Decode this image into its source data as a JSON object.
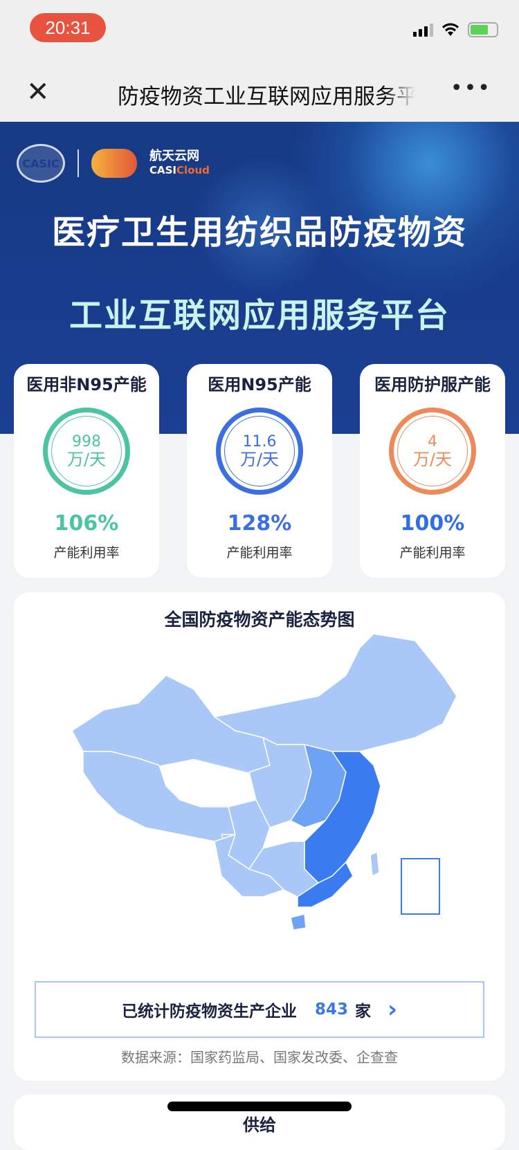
{
  "status_bar": {
    "time": "20:31",
    "signal_icon": "signal-icon",
    "wifi_icon": "wifi-icon",
    "battery_icon": "battery-charging-icon"
  },
  "nav": {
    "title": "防疫物资工业互联网应用服务平台",
    "close_icon": "close-icon",
    "more_icon": "more-icon"
  },
  "banner": {
    "logo_text_cn": "航天云网",
    "logo_text_en_1": "CASI",
    "logo_text_en_2": "Cloud",
    "title_line1": "医疗卫生用纺织品防疫物资",
    "title_line2": "工业互联网应用服务平台"
  },
  "capacity_cards": [
    {
      "title": "医用非N95产能",
      "value": "998",
      "unit": "万/天",
      "rate": "106%",
      "rate_label": "产能利用率",
      "color": "#4cc4a4"
    },
    {
      "title": "医用N95产能",
      "value": "11.6",
      "unit": "万/天",
      "rate": "128%",
      "rate_label": "产能利用率",
      "color": "#3b6fe0"
    },
    {
      "title": "医用防护服产能",
      "value": "4",
      "unit": "万/天",
      "rate": "100%",
      "rate_label": "产能利用率",
      "color": "#ec8a5a"
    }
  ],
  "map_section": {
    "title": "全国防疫物资产能态势图",
    "colors": {
      "low": "#a9c8f7",
      "mid": "#6ea2f3",
      "high": "#3a7cf0"
    },
    "stat_label": "已统计防疫物资生产企业",
    "stat_count": "843",
    "stat_unit": "家",
    "source": "数据来源：国家药监局、国家发改委、企查查"
  },
  "next_section": {
    "title": "供给"
  }
}
